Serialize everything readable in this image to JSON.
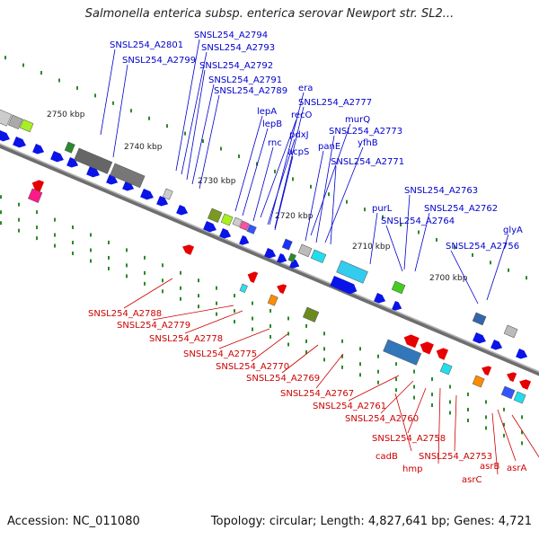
{
  "title": "Salmonella enterica subsp. enterica serovar Newport str. SL2...",
  "footer": {
    "accession": "Accession: NC_011080",
    "summary": "Topology: circular; Length: 4,827,641 bp; Genes: 4,721"
  },
  "colors": {
    "forward_label": "#0000cc",
    "reverse_label": "#cc0000",
    "backbone": "#777777",
    "forward_gene": "#0a14e6",
    "reverse_gene": "#e60000"
  },
  "scale_labels": [
    "2750 kbp",
    "2740 kbp",
    "2730 kbp",
    "2720 kbp",
    "2710 kbp",
    "2700 kbp"
  ],
  "forward_labels": [
    "SNSL254_A2801",
    "SNSL254_A2794",
    "SNSL254_A2793",
    "SNSL254_A2799",
    "SNSL254_A2792",
    "SNSL254_A2791",
    "SNSL254_A2789",
    "era",
    "SNSL254_A2777",
    "lepA",
    "recO",
    "lepB",
    "murQ",
    "pdxJ",
    "SNSL254_A2773",
    "rnc",
    "panE",
    "yfhB",
    "acpS",
    "SNSL254_A2771",
    "SNSL254_A2763",
    "purL",
    "SNSL254_A2762",
    "SNSL254_A2764",
    "glyA",
    "SNSL254_A2756"
  ],
  "reverse_labels": [
    "SNSL254_A2788",
    "SNSL254_A2779",
    "SNSL254_A2778",
    "SNSL254_A2775",
    "SNSL254_A2770",
    "SNSL254_A2769",
    "SNSL254_A2767",
    "SNSL254_A2761",
    "SNSL254_A2760",
    "SNSL254_A2758",
    "cadB",
    "hmp",
    "SNSL254_A2753",
    "asrB",
    "asrC",
    "asrA"
  ]
}
